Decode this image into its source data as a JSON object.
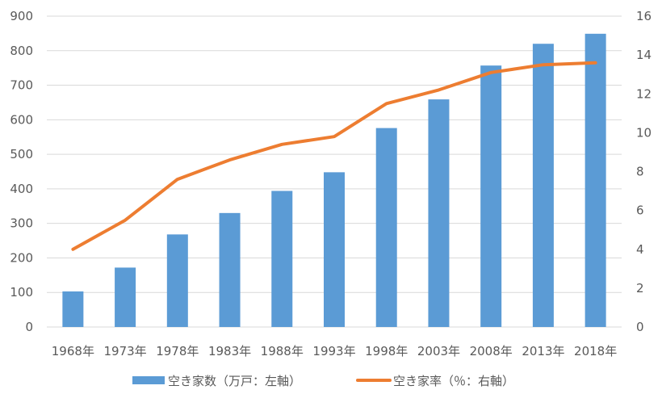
{
  "chart_data": {
    "type": "bar",
    "categories": [
      "1968年",
      "1973年",
      "1978年",
      "1983年",
      "1988年",
      "1993年",
      "1998年",
      "2003年",
      "2008年",
      "2013年",
      "2018年"
    ],
    "series": [
      {
        "name": "空き家数（万戸：左軸）",
        "type": "bar",
        "axis": "left",
        "color": "#5b9bd5",
        "values": [
          103,
          172,
          268,
          330,
          394,
          448,
          576,
          659,
          757,
          820,
          849
        ]
      },
      {
        "name": "空き家率（％：右軸）",
        "type": "line",
        "axis": "right",
        "color": "#ed7d31",
        "values": [
          4.0,
          5.5,
          7.6,
          8.6,
          9.4,
          9.8,
          11.5,
          12.2,
          13.1,
          13.5,
          13.6
        ]
      }
    ],
    "y_left": {
      "ylim": [
        0,
        900
      ],
      "ticks": [
        "0",
        "100",
        "200",
        "300",
        "400",
        "500",
        "600",
        "700",
        "800",
        "900"
      ]
    },
    "y_right": {
      "ylim": [
        0,
        16
      ],
      "ticks": [
        "0",
        "2",
        "4",
        "6",
        "8",
        "10",
        "12",
        "14",
        "16"
      ]
    },
    "grid": true,
    "legend_position": "bottom"
  }
}
